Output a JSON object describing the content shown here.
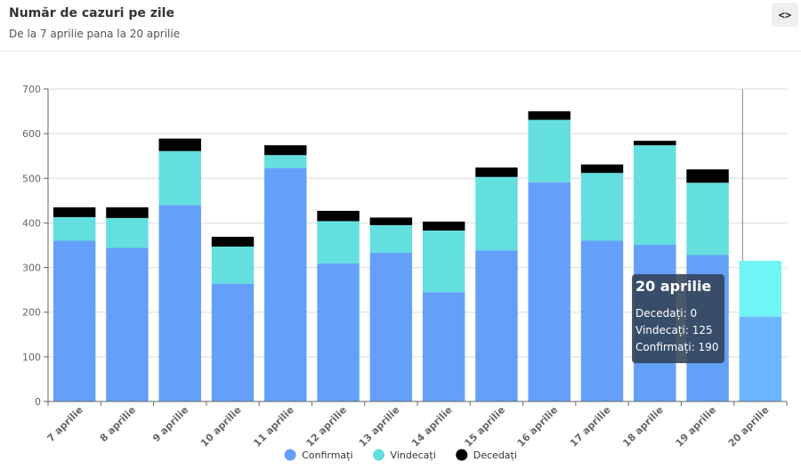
{
  "header": {
    "title": "Număr de cazuri pe zile",
    "subtitle": "De la 7 aprilie pana la 20 aprilie",
    "embed_label": "<>"
  },
  "chart_data": {
    "type": "bar",
    "stacked": true,
    "title": "Număr de cazuri pe zile",
    "subtitle": "De la 7 aprilie pana la 20 aprilie",
    "xlabel": "",
    "ylabel": "",
    "ylim": [
      0,
      700
    ],
    "yticks": [
      0,
      100,
      200,
      300,
      400,
      500,
      600,
      700
    ],
    "grid": true,
    "legend_position": "bottom-center",
    "categories": [
      "7 aprilie",
      "8 aprilie",
      "9 aprilie",
      "10 aprilie",
      "11 aprilie",
      "12 aprilie",
      "13 aprilie",
      "14 aprilie",
      "15 aprilie",
      "16 aprilie",
      "17 aprilie",
      "18 aprilie",
      "19 aprilie",
      "20 aprilie"
    ],
    "series": [
      {
        "name": "Confirmați",
        "color": "#64a0fa",
        "values": [
          360,
          344,
          440,
          264,
          523,
          309,
          333,
          245,
          338,
          491,
          360,
          351,
          328,
          190
        ]
      },
      {
        "name": "Vindecați",
        "color": "#63dfdf",
        "values": [
          53,
          67,
          121,
          83,
          29,
          95,
          62,
          138,
          165,
          140,
          152,
          223,
          162,
          125
        ]
      },
      {
        "name": "Decedați",
        "color": "#000000",
        "values": [
          22,
          24,
          28,
          22,
          22,
          23,
          17,
          20,
          21,
          19,
          19,
          10,
          30,
          0
        ]
      }
    ],
    "highlighted_category": "20 aprilie",
    "highlight_colors": {
      "Confirmați": "#6cb6ff",
      "Vindecați": "#6ff5f5"
    }
  },
  "tooltip": {
    "title": "20 aprilie",
    "lines": [
      "Decedați: 0",
      "Vindecați: 125",
      "Confirmați: 190"
    ]
  }
}
